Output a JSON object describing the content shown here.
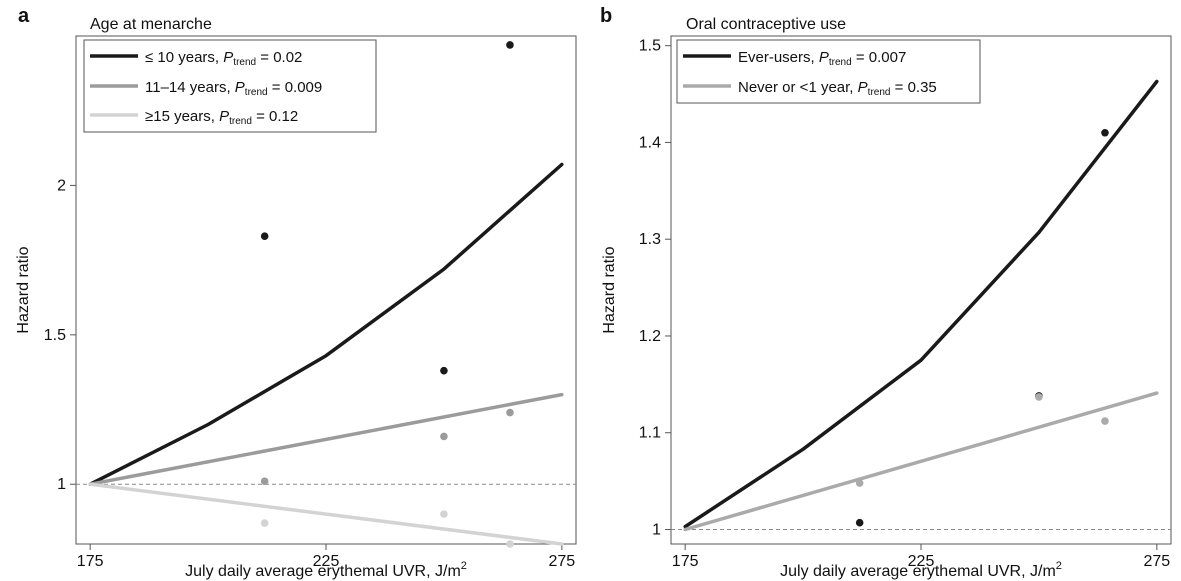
{
  "chart_data": [
    {
      "type": "line",
      "panel_label": "a",
      "legend_title": "Age at menarche",
      "xlabel": "July daily average erythemal UVR, J/m",
      "xlabel_sup": "2",
      "ylabel": "Hazard ratio",
      "xlim": [
        172,
        278
      ],
      "ylim": [
        0.8,
        2.5
      ],
      "xticks": [
        "175",
        "225",
        "275"
      ],
      "yticks": [
        "1",
        "1.5",
        "2"
      ],
      "reference_y": 1,
      "legend_position": "top-left",
      "series": [
        {
          "name": "≤ 10 years, ",
          "p_label": "P",
          "p_sub": "trend",
          "p_value": " = 0.02",
          "color": "#1a1a1a",
          "line_x": [
            175,
            200,
            225,
            250,
            275
          ],
          "line_y": [
            1.0,
            1.2,
            1.43,
            1.72,
            2.07
          ],
          "points": [
            [
              212,
              1.83
            ],
            [
              250,
              1.38
            ],
            [
              264,
              2.47
            ]
          ]
        },
        {
          "name": "11–14 years, ",
          "p_label": "P",
          "p_sub": "trend",
          "p_value": " = 0.009",
          "color": "#9b9b9b",
          "line_x": [
            175,
            275
          ],
          "line_y": [
            1.0,
            1.3
          ],
          "points": [
            [
              212,
              1.01
            ],
            [
              250,
              1.16
            ],
            [
              264,
              1.24
            ]
          ]
        },
        {
          "name": "≥15 years, ",
          "p_label": "P",
          "p_sub": "trend",
          "p_value": " = 0.12",
          "color": "#d3d3d3",
          "line_x": [
            175,
            275
          ],
          "line_y": [
            1.0,
            0.8
          ],
          "points": [
            [
              212,
              0.87
            ],
            [
              250,
              0.9
            ],
            [
              264,
              0.8
            ]
          ]
        }
      ]
    },
    {
      "type": "line",
      "panel_label": "b",
      "legend_title": "Oral contraceptive use",
      "xlabel": "July daily average erythemal UVR, J/m",
      "xlabel_sup": "2",
      "ylabel": "Hazard ratio",
      "xlim": [
        172,
        278
      ],
      "ylim": [
        0.985,
        1.51
      ],
      "xticks": [
        "175",
        "225",
        "275"
      ],
      "yticks": [
        "1",
        "1.1",
        "1.2",
        "1.3",
        "1.4",
        "1.5"
      ],
      "reference_y": 1,
      "legend_position": "top-left",
      "series": [
        {
          "name": "Ever-users, ",
          "p_label": "P",
          "p_sub": "trend",
          "p_value": " = 0.007",
          "color": "#1a1a1a",
          "line_x": [
            175,
            200,
            225,
            250,
            275
          ],
          "line_y": [
            1.003,
            1.083,
            1.175,
            1.307,
            1.463
          ],
          "points": [
            [
              212,
              1.007
            ],
            [
              250,
              1.138
            ],
            [
              264,
              1.41
            ]
          ]
        },
        {
          "name": "Never or <1 year, ",
          "p_label": "P",
          "p_sub": "trend",
          "p_value": " = 0.35",
          "color": "#aaaaaa",
          "line_x": [
            175,
            275
          ],
          "line_y": [
            1.0,
            1.141
          ],
          "points": [
            [
              212,
              1.048
            ],
            [
              250,
              1.137
            ],
            [
              264,
              1.112
            ]
          ]
        }
      ]
    }
  ]
}
